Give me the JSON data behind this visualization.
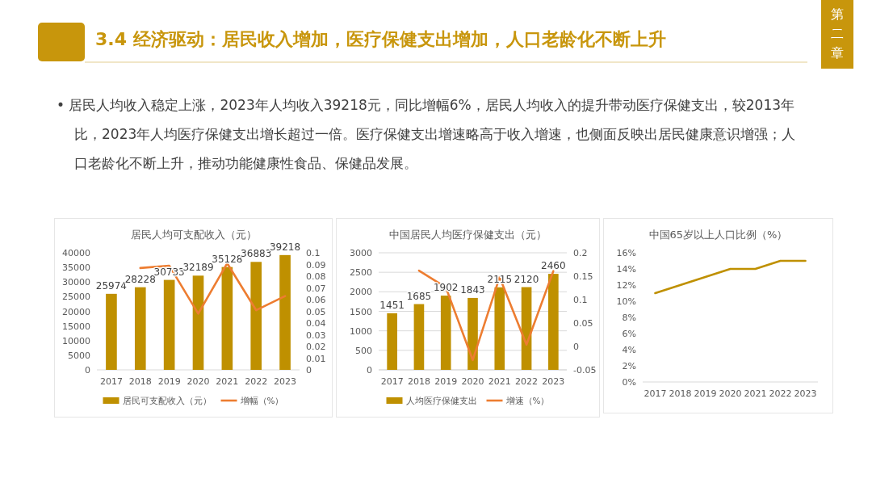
{
  "chart_data": [
    {
      "type": "bar",
      "title": "居民人均可支配收入（元）",
      "categories": [
        "2017",
        "2018",
        "2019",
        "2020",
        "2021",
        "2022",
        "2023"
      ],
      "series": [
        {
          "name": "居民可支配收入（元）",
          "type": "bar",
          "color": "#bf9000",
          "values": [
            25974,
            28228,
            30733,
            32189,
            35128,
            36883,
            39218
          ],
          "value_labels": [
            "25974",
            "28228",
            "30733",
            "32189",
            "35128",
            "36883",
            "39218"
          ]
        },
        {
          "name": "增幅（%）",
          "type": "line",
          "axis": "y2",
          "color": "#ed7d31",
          "values": [
            null,
            0.087,
            0.089,
            0.048,
            0.091,
            0.051,
            0.063
          ]
        }
      ],
      "ylim": [
        0,
        40000
      ],
      "yticks": [
        0,
        5000,
        10000,
        15000,
        20000,
        25000,
        30000,
        35000,
        40000
      ],
      "y2lim": [
        0,
        0.1
      ],
      "y2ticks": [
        0,
        0.01,
        0.02,
        0.03,
        0.04,
        0.05,
        0.06,
        0.07,
        0.08,
        0.09,
        0.1
      ],
      "legend": "bottom",
      "annotations": [
        "3.4 经济驱动：居民收入增加，医疗保健支出增加，人口老龄化不断上升",
        "第二章",
        "• 居民人均收入稳定上涨，2023年人均收入39218元，同比增幅6%，居民人均收入的提升带动医疗保健支出，较2013年比，2023年人均医疗保健支出增长超过一倍。医疗保健支出增速略高于收入增速，也侧面反映出居民健康意识增强；人口老龄化不断上升，推动功能健康性食品、保健品发展。"
      ]
    },
    {
      "type": "bar",
      "title": "中国居民人均医疗保健支出（元）",
      "categories": [
        "2017",
        "2018",
        "2019",
        "2020",
        "2021",
        "2022",
        "2023"
      ],
      "series": [
        {
          "name": "人均医疗保健支出",
          "type": "bar",
          "color": "#bf9000",
          "values": [
            1451,
            1685,
            1902,
            1843,
            2115,
            2120,
            2460
          ],
          "value_labels": [
            "1451",
            "1685",
            "1902",
            "1843",
            "2115",
            "2120",
            "2460"
          ]
        },
        {
          "name": "增速（%）",
          "type": "line",
          "axis": "y2",
          "color": "#ed7d31",
          "values": [
            null,
            0.162,
            0.126,
            -0.029,
            0.148,
            0.004,
            0.161
          ]
        }
      ],
      "ylim": [
        0,
        3000
      ],
      "yticks": [
        0,
        500,
        1000,
        1500,
        2000,
        2500,
        3000
      ],
      "y2lim": [
        -0.05,
        0.2
      ],
      "y2ticks": [
        -0.05,
        0,
        0.05,
        0.1,
        0.15,
        0.2
      ],
      "grid": "y",
      "legend": "bottom"
    },
    {
      "type": "line",
      "title": "中国65岁以上人口比例（%）",
      "categories": [
        "2017",
        "2018",
        "2019",
        "2020",
        "2021",
        "2022",
        "2023"
      ],
      "series": [
        {
          "color": "#bf9000",
          "values": [
            11,
            12,
            13,
            14,
            14,
            15,
            15
          ]
        }
      ],
      "ylim": [
        0,
        16
      ],
      "yticks": [
        {
          "value": 0,
          "label": "0%"
        },
        {
          "value": 2,
          "label": "2%"
        },
        {
          "value": 4,
          "label": "4%"
        },
        {
          "value": 6,
          "label": "6%"
        },
        {
          "value": 8,
          "label": "8%"
        },
        {
          "value": 10,
          "label": "10%"
        },
        {
          "value": 12,
          "label": "12%"
        },
        {
          "value": 14,
          "label": "14%"
        },
        {
          "value": 16,
          "label": "16%"
        }
      ]
    }
  ]
}
